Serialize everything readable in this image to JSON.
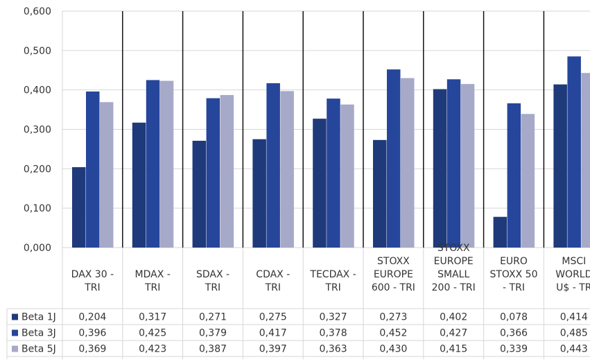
{
  "chart_data": {
    "type": "bar",
    "categories": [
      [
        "DAX 30 -",
        "TRI"
      ],
      [
        "MDAX -",
        "TRI"
      ],
      [
        "SDAX -",
        "TRI"
      ],
      [
        "CDAX -",
        "TRI"
      ],
      [
        "TECDAX -",
        "TRI"
      ],
      [
        "STOXX",
        "EUROPE",
        "600 - TRI"
      ],
      [
        "STOXX",
        "EUROPE",
        "SMALL",
        "200 - TRI"
      ],
      [
        "EURO",
        "STOXX 50",
        "- TRI"
      ],
      [
        "MSCI",
        "WORLD",
        "U$ - TR"
      ]
    ],
    "series": [
      {
        "name": "Beta 1J",
        "color": "#1f3a7a",
        "values": [
          0.204,
          0.317,
          0.271,
          0.275,
          0.327,
          0.273,
          0.402,
          0.078,
          0.414
        ],
        "labels": [
          "0,204",
          "0,317",
          "0,271",
          "0,275",
          "0,327",
          "0,273",
          "0,402",
          "0,078",
          "0,414"
        ]
      },
      {
        "name": "Beta 3J",
        "color": "#26469c",
        "values": [
          0.396,
          0.425,
          0.379,
          0.417,
          0.378,
          0.452,
          0.427,
          0.366,
          0.485
        ],
        "labels": [
          "0,396",
          "0,425",
          "0,379",
          "0,417",
          "0,378",
          "0,452",
          "0,427",
          "0,366",
          "0,485"
        ]
      },
      {
        "name": "Beta 5J",
        "color": "#a6a9c8",
        "values": [
          0.369,
          0.423,
          0.387,
          0.397,
          0.363,
          0.43,
          0.415,
          0.339,
          0.443
        ],
        "labels": [
          "0,369",
          "0,423",
          "0,387",
          "0,397",
          "0,363",
          "0,430",
          "0,415",
          "0,339",
          "0,443"
        ]
      }
    ],
    "y_ticks": [
      "0,000",
      "0,100",
      "0,200",
      "0,300",
      "0,400",
      "0,500",
      "0,600"
    ],
    "ylim": [
      0,
      0.6
    ],
    "grid": true,
    "legend": "data-table"
  }
}
